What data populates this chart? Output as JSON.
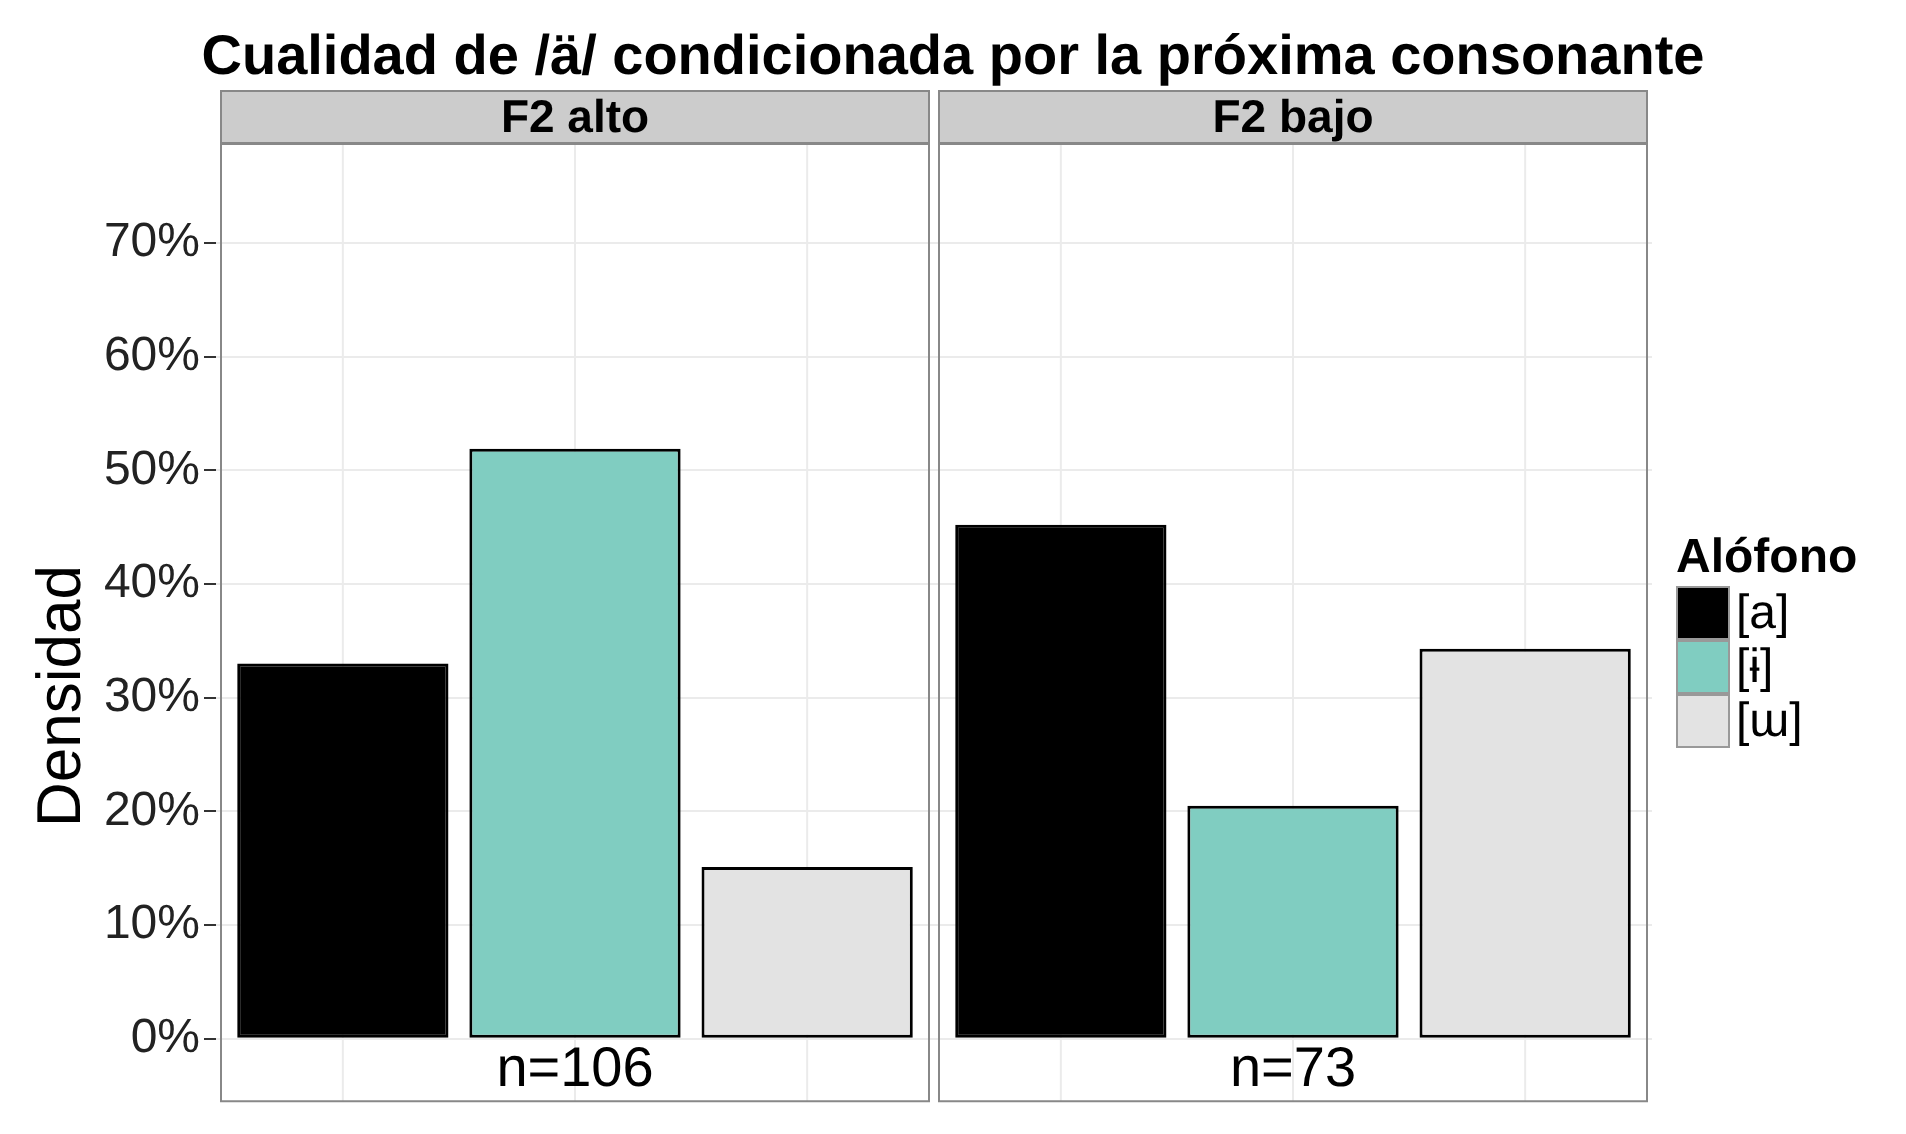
{
  "chart_data": {
    "type": "bar",
    "title": "Cualidad de /ä/ condicionada por la próxima consonante",
    "ylabel": "Densidad",
    "legend_title": "Alófono",
    "categories": [
      "F2 alto",
      "F2 bajo"
    ],
    "series": [
      {
        "name": "[a]",
        "color": "#000000",
        "values": [
          33.0,
          45.2
        ]
      },
      {
        "name": "[ɨ]",
        "color": "#80cdc1",
        "values": [
          51.9,
          20.5
        ]
      },
      {
        "name": "[ɯ]",
        "color": "#e3e3e3",
        "values": [
          15.1,
          34.3
        ]
      }
    ],
    "ylim": [
      -5.5,
      78.7
    ],
    "yticks": [
      {
        "value": 0,
        "label": "0%"
      },
      {
        "value": 10,
        "label": "10%"
      },
      {
        "value": 20,
        "label": "20%"
      },
      {
        "value": 30,
        "label": "30%"
      },
      {
        "value": 40,
        "label": "40%"
      },
      {
        "value": 50,
        "label": "50%"
      },
      {
        "value": 60,
        "label": "60%"
      },
      {
        "value": 70,
        "label": "70%"
      }
    ],
    "grid": true,
    "legend": "right",
    "annotations": [
      "n=106",
      "n=73"
    ]
  }
}
